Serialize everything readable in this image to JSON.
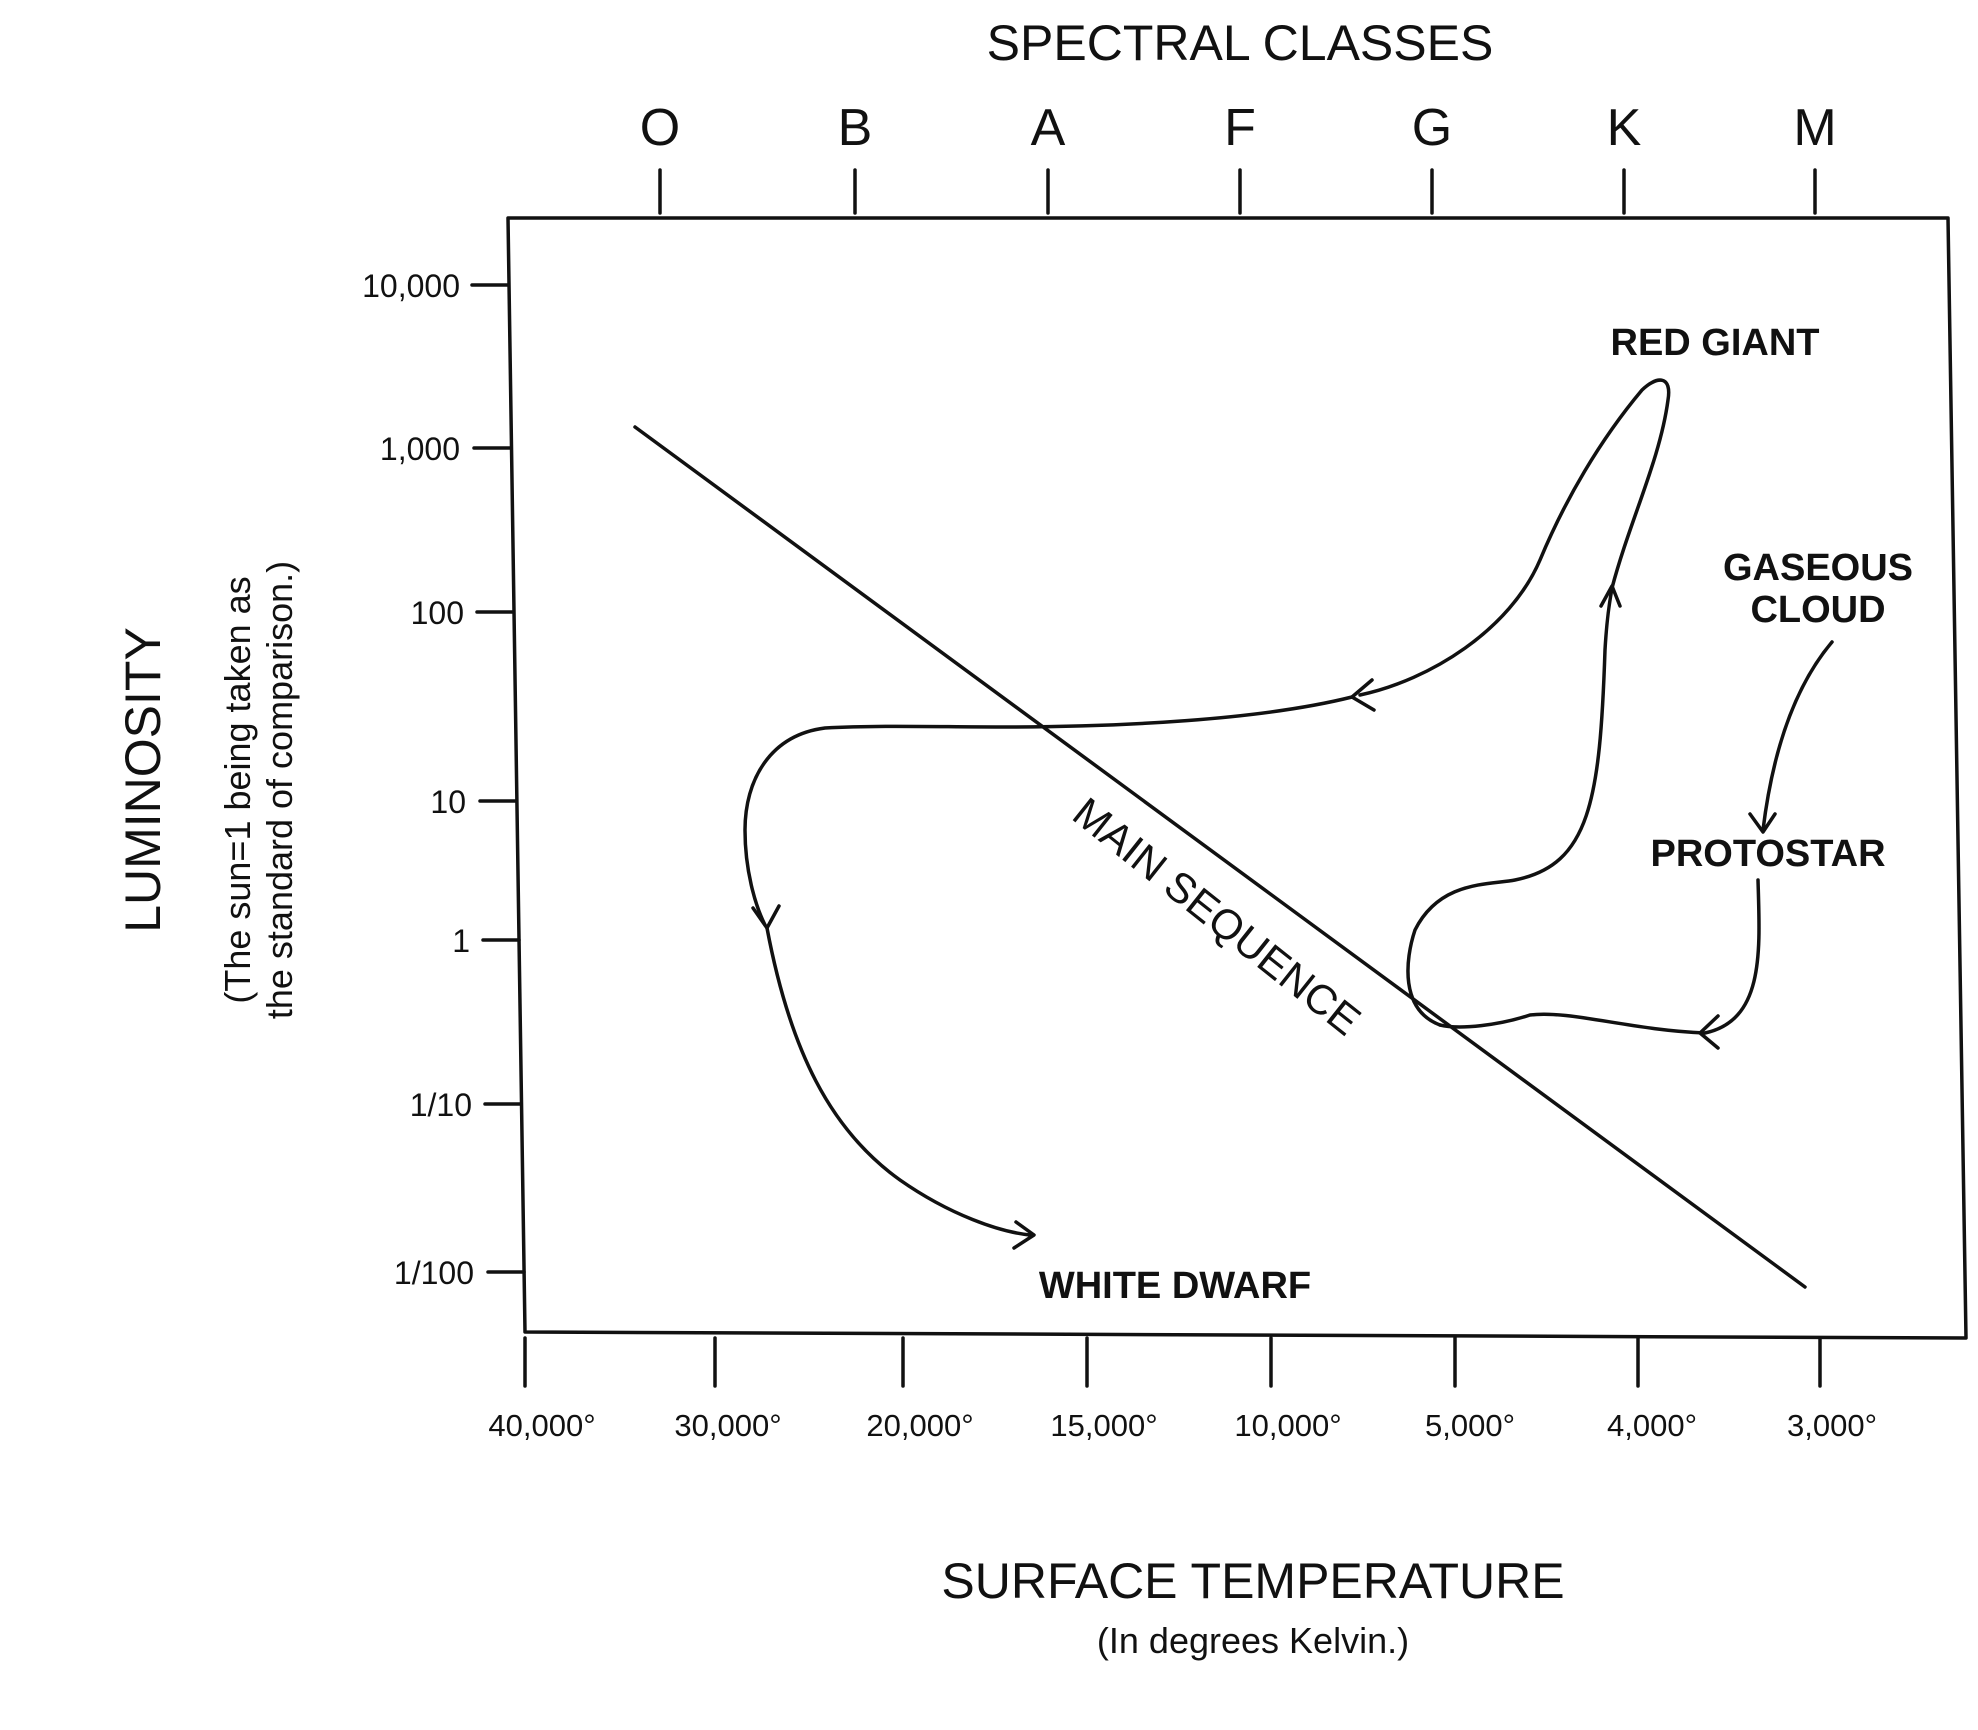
{
  "spectral": {
    "title": "SPECTRAL CLASSES",
    "classes": [
      "O",
      "B",
      "A",
      "F",
      "G",
      "K",
      "M"
    ]
  },
  "luminosity": {
    "title": "LUMINOSITY",
    "note_line1": "(The sun=1 being taken as",
    "note_line2": "the standard of comparison.)",
    "ticks": [
      "10,000",
      "1,000",
      "100",
      "10",
      "1",
      "1/10",
      "1/100"
    ]
  },
  "temperature": {
    "title": "SURFACE TEMPERATURE",
    "note": "(In degrees Kelvin.)",
    "ticks": [
      "40,000°",
      "30,000°",
      "20,000°",
      "15,000°",
      "10,000°",
      "5,000°",
      "4,000°",
      "3,000°"
    ]
  },
  "labels": {
    "main_sequence": "MAIN SEQUENCE",
    "red_giant": "RED GIANT",
    "gaseous_line1": "GASEOUS",
    "gaseous_line2": "CLOUD",
    "protostar": "PROTOSTAR",
    "white_dwarf": "WHITE DWARF"
  }
}
